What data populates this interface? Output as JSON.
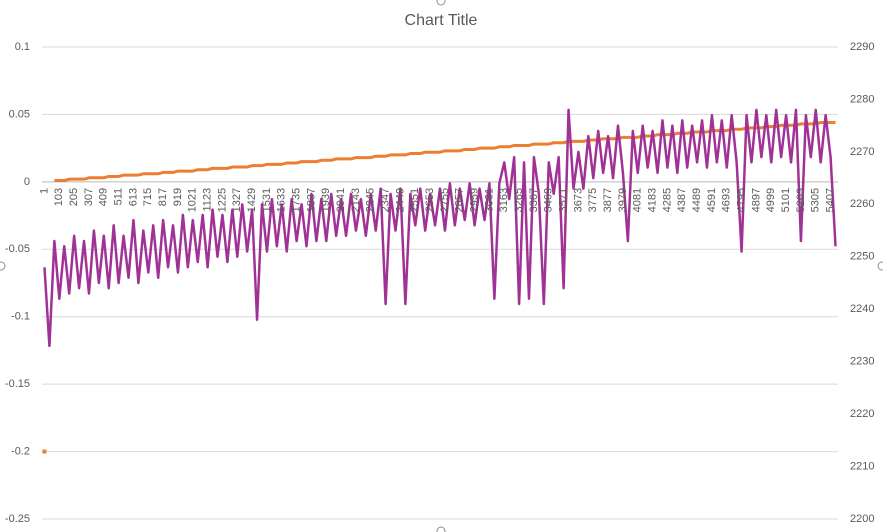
{
  "chart_data": {
    "type": "line",
    "title": "Chart Title",
    "categories": [
      1,
      null,
      null,
      103,
      null,
      null,
      205,
      null,
      null,
      307,
      null,
      null,
      409,
      null,
      null,
      511,
      null,
      null,
      613,
      null,
      null,
      715,
      null,
      null,
      817,
      null,
      null,
      919,
      null,
      null,
      1021,
      null,
      null,
      1123,
      null,
      null,
      1225,
      null,
      null,
      1327,
      null,
      null,
      1429,
      null,
      null,
      1531,
      null,
      null,
      1633,
      null,
      null,
      1735,
      null,
      null,
      1837,
      null,
      null,
      1939,
      null,
      null,
      2041,
      null,
      null,
      2143,
      null,
      null,
      2245,
      null,
      null,
      2347,
      null,
      null,
      2449,
      null,
      null,
      2551,
      null,
      null,
      2653,
      null,
      null,
      2755,
      null,
      null,
      2857,
      null,
      null,
      2959,
      null,
      null,
      3061,
      null,
      null,
      3163,
      null,
      null,
      3265,
      null,
      null,
      3367,
      null,
      null,
      3469,
      null,
      null,
      3571,
      null,
      null,
      3673,
      null,
      null,
      3775,
      null,
      null,
      3877,
      null,
      null,
      3979,
      null,
      null,
      4081,
      null,
      null,
      4183,
      null,
      null,
      4285,
      null,
      null,
      4387,
      null,
      null,
      4489,
      null,
      null,
      4591,
      null,
      null,
      4693,
      null,
      null,
      4795,
      null,
      null,
      4897,
      null,
      null,
      4999,
      null,
      null,
      5101,
      null,
      null,
      5203,
      null,
      null,
      5305,
      null,
      null,
      5407,
      null
    ],
    "series": [
      {
        "color": "#ed7d31",
        "values": [
          -0.2,
          null,
          0.001,
          0.001,
          0.001,
          0.002,
          0.002,
          0.002,
          0.002,
          0.003,
          0.003,
          0.003,
          0.003,
          0.004,
          0.004,
          0.004,
          0.005,
          0.005,
          0.005,
          0.005,
          0.006,
          0.006,
          0.006,
          0.006,
          0.007,
          0.007,
          0.007,
          0.008,
          0.008,
          0.008,
          0.008,
          0.009,
          0.009,
          0.009,
          0.01,
          0.01,
          0.01,
          0.01,
          0.011,
          0.011,
          0.011,
          0.011,
          0.012,
          0.012,
          0.012,
          0.013,
          0.013,
          0.013,
          0.013,
          0.014,
          0.014,
          0.014,
          0.015,
          0.015,
          0.015,
          0.015,
          0.016,
          0.016,
          0.016,
          0.017,
          0.017,
          0.017,
          0.017,
          0.018,
          0.018,
          0.018,
          0.018,
          0.019,
          0.019,
          0.019,
          0.02,
          0.02,
          0.02,
          0.02,
          0.021,
          0.021,
          0.021,
          0.022,
          0.022,
          0.022,
          0.022,
          0.023,
          0.023,
          0.023,
          0.023,
          0.024,
          0.024,
          0.024,
          0.025,
          0.025,
          0.025,
          0.025,
          0.026,
          0.026,
          0.026,
          0.027,
          0.027,
          0.027,
          0.027,
          0.028,
          0.028,
          0.028,
          0.028,
          0.029,
          0.029,
          0.029,
          0.03,
          0.03,
          0.03,
          0.03,
          0.031,
          0.031,
          0.031,
          0.032,
          0.032,
          0.032,
          0.032,
          0.033,
          0.033,
          0.033,
          0.033,
          0.034,
          0.034,
          0.034,
          0.035,
          0.035,
          0.035,
          0.035,
          0.036,
          0.036,
          0.036,
          0.037,
          0.037,
          0.037,
          0.037,
          0.038,
          0.038,
          0.038,
          0.038,
          0.039,
          0.039,
          0.039,
          0.04,
          0.04,
          0.04,
          0.04,
          0.041,
          0.041,
          0.041,
          0.042,
          0.042,
          0.042,
          0.042,
          0.043,
          0.043,
          0.043,
          0.043,
          0.044,
          0.044,
          0.044,
          0.044
        ]
      },
      {
        "color": "#a03296",
        "axis": "y2",
        "values": [
          2248,
          2233,
          2253,
          2242,
          2252,
          2243,
          2254,
          2244,
          2253,
          2243,
          2255,
          2245,
          2254,
          2244,
          2256,
          2245,
          2254,
          2246,
          2257,
          2245,
          2255,
          2247,
          2256,
          2246,
          2257,
          2248,
          2256,
          2247,
          2258,
          2248,
          2257,
          2249,
          2258,
          2248,
          2259,
          2250,
          2258,
          2249,
          2259,
          2250,
          2260,
          2251,
          2259,
          2238,
          2260,
          2251,
          2261,
          2252,
          2260,
          2251,
          2261,
          2253,
          2260,
          2252,
          2262,
          2253,
          2261,
          2253,
          2262,
          2254,
          2261,
          2254,
          2262,
          2255,
          2261,
          2254,
          2262,
          2255,
          2263,
          2241,
          2262,
          2255,
          2263,
          2241,
          2262,
          2256,
          2263,
          2255,
          2262,
          2256,
          2263,
          2255,
          2264,
          2256,
          2263,
          2257,
          2264,
          2256,
          2263,
          2257,
          2264,
          2242,
          2264,
          2268,
          2261,
          2269,
          2241,
          2268,
          2242,
          2269,
          2262,
          2241,
          2268,
          2262,
          2269,
          2244,
          2278,
          2263,
          2270,
          2263,
          2273,
          2265,
          2274,
          2266,
          2273,
          2265,
          2275,
          2266,
          2253,
          2274,
          2266,
          2275,
          2267,
          2274,
          2266,
          2276,
          2267,
          2275,
          2266,
          2276,
          2267,
          2275,
          2268,
          2276,
          2267,
          2277,
          2268,
          2276,
          2267,
          2277,
          2268,
          2251,
          2277,
          2268,
          2278,
          2269,
          2277,
          2268,
          2278,
          2269,
          2277,
          2268,
          2278,
          2253,
          2277,
          2269,
          2278,
          2268,
          2277,
          2269,
          2252
        ]
      }
    ],
    "ylim": [
      -0.25,
      0.1
    ],
    "yticks": [
      -0.25,
      -0.2,
      -0.15,
      -0.1,
      -0.05,
      0,
      0.05,
      0.1
    ],
    "y2lim": [
      2200,
      2290
    ],
    "y2ticks": [
      2200,
      2210,
      2220,
      2230,
      2240,
      2250,
      2260,
      2270,
      2280,
      2290
    ],
    "grid": true
  }
}
